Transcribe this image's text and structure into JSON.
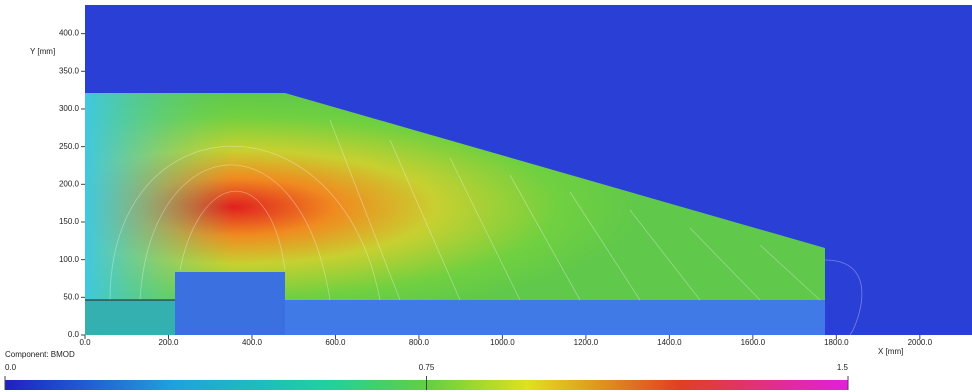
{
  "chart_data": {
    "type": "field",
    "xlabel": "X [mm]",
    "ylabel": "Y [mm]",
    "xlim": [
      0,
      2125
    ],
    "ylim": [
      0,
      438
    ],
    "xticks": [
      {
        "value": 0,
        "label": "0.0"
      },
      {
        "value": 200,
        "label": "200.0"
      },
      {
        "value": 400,
        "label": "400.0"
      },
      {
        "value": 600,
        "label": "600.0"
      },
      {
        "value": 800,
        "label": "800.0"
      },
      {
        "value": 1000,
        "label": "1000.0"
      },
      {
        "value": 1200,
        "label": "1200.0"
      },
      {
        "value": 1400,
        "label": "1400.0"
      },
      {
        "value": 1600,
        "label": "1600.0"
      },
      {
        "value": 1800,
        "label": "1800.0"
      },
      {
        "value": 2000,
        "label": "2000.0"
      }
    ],
    "yticks": [
      {
        "value": 0,
        "label": "0.0"
      },
      {
        "value": 50,
        "label": "50.0"
      },
      {
        "value": 100,
        "label": "100.0"
      },
      {
        "value": 150,
        "label": "150.0"
      },
      {
        "value": 200,
        "label": "200.0"
      },
      {
        "value": 250,
        "label": "250.0"
      },
      {
        "value": 300,
        "label": "300.0"
      },
      {
        "value": 350,
        "label": "350.0"
      },
      {
        "value": 400,
        "label": "400.0"
      }
    ],
    "colorbar_title": "Component: BMOD",
    "clim": [
      0,
      1.5
    ],
    "cticks": [
      {
        "value": 0,
        "label": "0.0"
      },
      0.75,
      1.5
    ]
  }
}
